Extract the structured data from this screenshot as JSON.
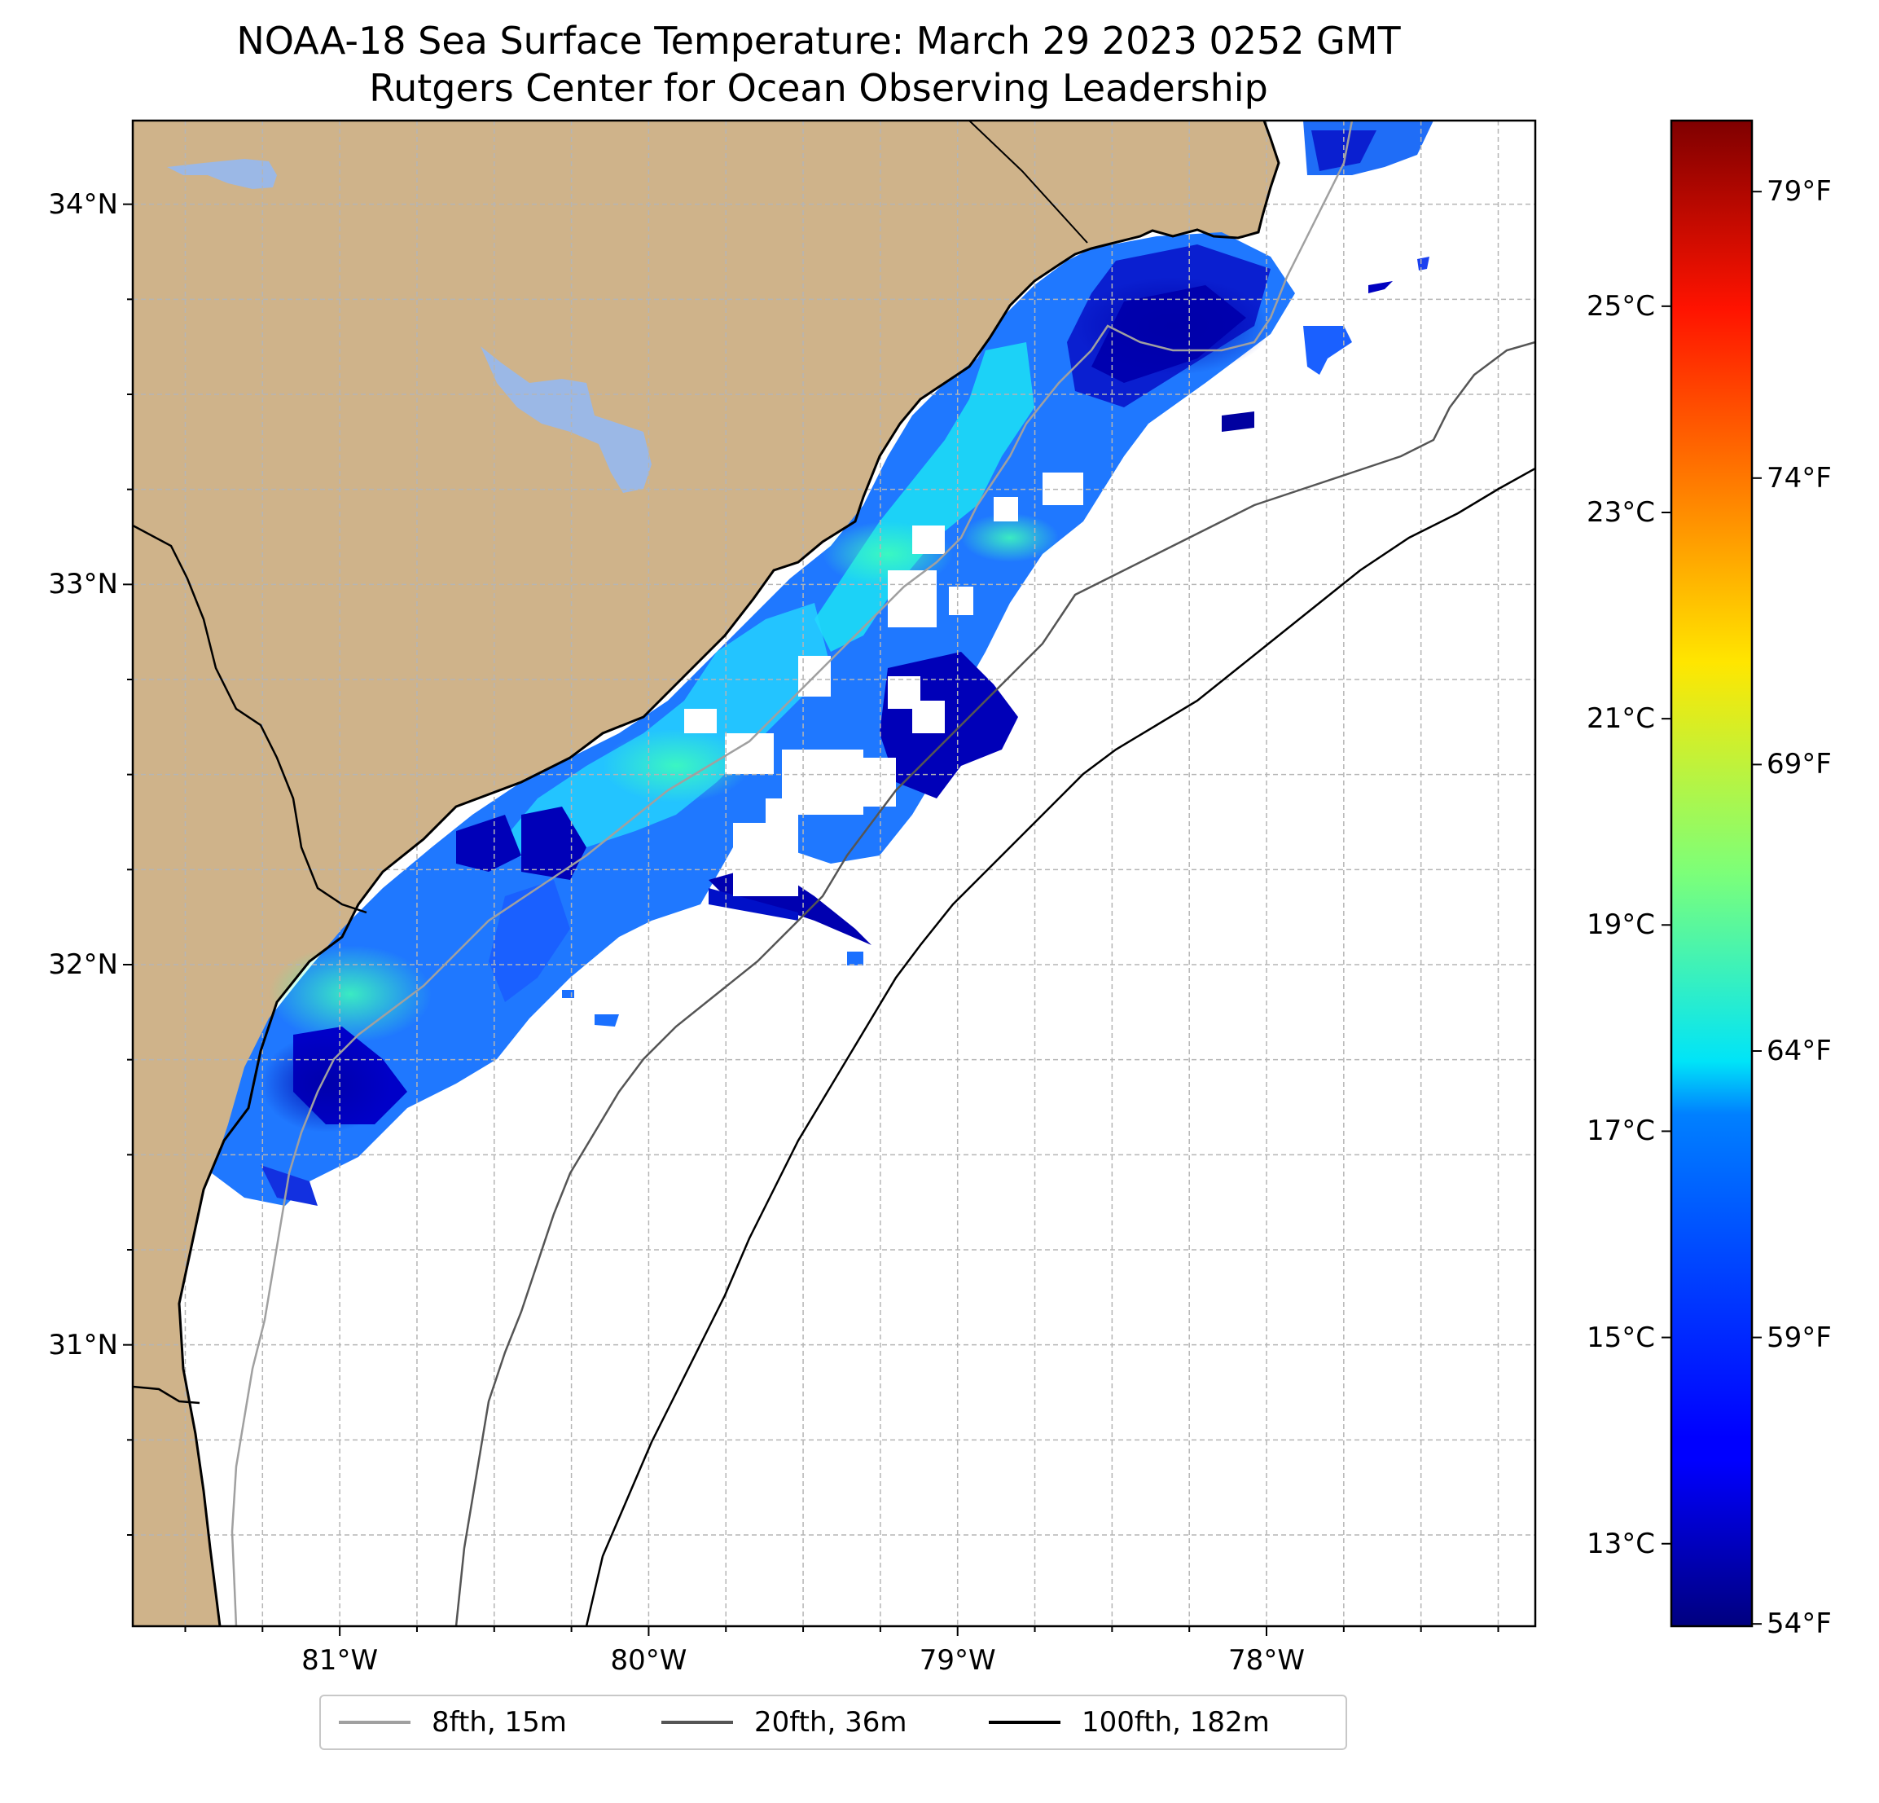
{
  "title": {
    "line1": "NOAA-18 Sea Surface Temperature: March 29 2023 0252 GMT",
    "line2": "Rutgers Center for Ocean Observing Leadership"
  },
  "map": {
    "lon_range": [
      -81.67,
      -77.13
    ],
    "lat_range": [
      30.26,
      34.22
    ],
    "lon_ticks": [
      {
        "value": -81,
        "label": "81°W"
      },
      {
        "value": -80,
        "label": "80°W"
      },
      {
        "value": -79,
        "label": "79°W"
      },
      {
        "value": -78,
        "label": "78°W"
      }
    ],
    "lat_ticks": [
      {
        "value": 31,
        "label": "31°N"
      },
      {
        "value": 32,
        "label": "32°N"
      },
      {
        "value": 33,
        "label": "33°N"
      },
      {
        "value": 34,
        "label": "34°N"
      }
    ],
    "gridlines": true,
    "land_color": "#cfb38a",
    "water_color": "#9bb8e6",
    "ocean_color": "#ffffff"
  },
  "colorbar": {
    "colormap": "jet",
    "range_c": [
      12.2,
      26.8
    ],
    "celsius_ticks": [
      {
        "value": 13,
        "label": "13°C"
      },
      {
        "value": 15,
        "label": "15°C"
      },
      {
        "value": 17,
        "label": "17°C"
      },
      {
        "value": 19,
        "label": "19°C"
      },
      {
        "value": 21,
        "label": "21°C"
      },
      {
        "value": 23,
        "label": "23°C"
      },
      {
        "value": 25,
        "label": "25°C"
      }
    ],
    "fahrenheit_ticks": [
      {
        "value": 54,
        "label": "54°F"
      },
      {
        "value": 59,
        "label": "59°F"
      },
      {
        "value": 64,
        "label": "64°F"
      },
      {
        "value": 69,
        "label": "69°F"
      },
      {
        "value": 74,
        "label": "74°F"
      },
      {
        "value": 79,
        "label": "79°F"
      }
    ]
  },
  "legend": {
    "items": [
      {
        "label": "8fth, 15m",
        "color": "#a0a0a0"
      },
      {
        "label": "20fth, 36m",
        "color": "#555555"
      },
      {
        "label": "100fth, 182m",
        "color": "#000000"
      }
    ]
  }
}
